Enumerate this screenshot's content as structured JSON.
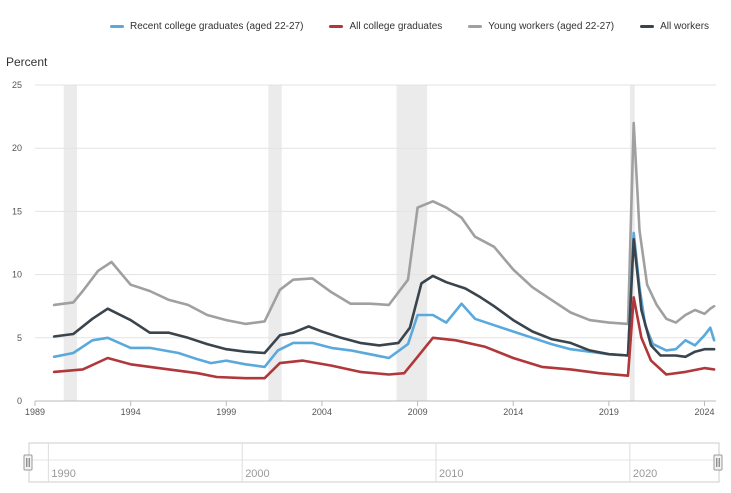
{
  "chart_data": {
    "type": "line",
    "ylabel": "Percent",
    "ylim": [
      0,
      25
    ],
    "y_ticks": [
      "0",
      "5",
      "10",
      "15",
      "20",
      "25"
    ],
    "x_ticks": [
      "1989",
      "1994",
      "1999",
      "2004",
      "2009",
      "2014",
      "2019",
      "2024"
    ],
    "xlim": [
      1989.0,
      2024.6
    ],
    "grid": "horizontal",
    "legend_position": "top",
    "recessions": [
      [
        1990.5,
        1991.2
      ],
      [
        2001.2,
        2001.9
      ],
      [
        2007.9,
        2009.5
      ],
      [
        2020.1,
        2020.35
      ]
    ],
    "series": [
      {
        "name": "Recent college graduates (aged 22-27)",
        "color": "#5aa9dd",
        "x": [
          1990.0,
          1991.0,
          1992.0,
          1992.8,
          1994.0,
          1995.0,
          1996.5,
          1997.5,
          1998.2,
          1999.0,
          2000.0,
          2001.0,
          2001.7,
          2002.5,
          2003.5,
          2004.5,
          2005.5,
          2006.5,
          2007.5,
          2008.5,
          2009.0,
          2009.8,
          2010.5,
          2011.3,
          2012.0,
          2013.0,
          2014.0,
          2015.0,
          2016.0,
          2017.0,
          2018.0,
          2019.0,
          2020.0,
          2020.3,
          2020.6,
          2020.9,
          2021.3,
          2022.0,
          2022.5,
          2023.0,
          2023.5,
          2024.0,
          2024.3,
          2024.5
        ],
        "values": [
          3.5,
          3.8,
          4.8,
          5.0,
          4.2,
          4.2,
          3.8,
          3.3,
          3.0,
          3.2,
          2.9,
          2.7,
          4.0,
          4.6,
          4.6,
          4.2,
          4.0,
          3.7,
          3.4,
          4.5,
          6.8,
          6.8,
          6.2,
          7.7,
          6.5,
          6.0,
          5.5,
          5.0,
          4.5,
          4.1,
          3.9,
          3.7,
          3.6,
          13.3,
          9.0,
          6.0,
          4.5,
          4.0,
          4.1,
          4.8,
          4.4,
          5.2,
          5.8,
          4.8
        ]
      },
      {
        "name": "All college graduates",
        "color": "#b0373a",
        "x": [
          1990.0,
          1991.5,
          1992.8,
          1994.0,
          1996.0,
          1997.5,
          1998.5,
          2000.0,
          2001.0,
          2001.8,
          2003.0,
          2004.5,
          2006.0,
          2007.5,
          2008.3,
          2009.0,
          2009.8,
          2011.0,
          2012.5,
          2014.0,
          2015.5,
          2017.0,
          2018.5,
          2020.0,
          2020.3,
          2020.7,
          2021.2,
          2022.0,
          2023.0,
          2024.0,
          2024.5
        ],
        "values": [
          2.3,
          2.5,
          3.4,
          2.9,
          2.5,
          2.2,
          1.9,
          1.8,
          1.8,
          3.0,
          3.2,
          2.8,
          2.3,
          2.1,
          2.2,
          3.5,
          5.0,
          4.8,
          4.3,
          3.4,
          2.7,
          2.5,
          2.2,
          2.0,
          8.2,
          5.0,
          3.2,
          2.1,
          2.3,
          2.6,
          2.5
        ]
      },
      {
        "name": "Young workers (aged 22-27)",
        "color": "#a0a0a0",
        "x": [
          1990.0,
          1991.0,
          1991.5,
          1992.3,
          1993.0,
          1994.0,
          1995.0,
          1996.0,
          1997.0,
          1998.0,
          1999.0,
          2000.0,
          2001.0,
          2001.8,
          2002.5,
          2003.5,
          2004.5,
          2005.5,
          2006.5,
          2007.5,
          2008.5,
          2009.0,
          2009.8,
          2010.5,
          2011.3,
          2012.0,
          2013.0,
          2014.0,
          2015.0,
          2016.0,
          2017.0,
          2018.0,
          2019.0,
          2020.0,
          2020.3,
          2020.6,
          2021.0,
          2021.5,
          2022.0,
          2022.5,
          2023.0,
          2023.5,
          2024.0,
          2024.3,
          2024.5
        ],
        "values": [
          7.6,
          7.8,
          8.7,
          10.3,
          11.0,
          9.2,
          8.7,
          8.0,
          7.6,
          6.8,
          6.4,
          6.1,
          6.3,
          8.8,
          9.6,
          9.7,
          8.6,
          7.7,
          7.7,
          7.6,
          9.6,
          15.3,
          15.8,
          15.3,
          14.5,
          13.0,
          12.2,
          10.4,
          9.0,
          8.0,
          7.0,
          6.4,
          6.2,
          6.1,
          22.0,
          13.5,
          9.2,
          7.6,
          6.5,
          6.2,
          6.8,
          7.2,
          6.9,
          7.3,
          7.5
        ]
      },
      {
        "name": "All workers",
        "color": "#3a444d",
        "x": [
          1990.0,
          1991.0,
          1992.0,
          1992.8,
          1994.0,
          1995.0,
          1996.0,
          1997.0,
          1998.0,
          1999.0,
          2000.0,
          2001.0,
          2001.8,
          2002.5,
          2003.3,
          2004.0,
          2005.0,
          2006.0,
          2007.0,
          2008.0,
          2008.6,
          2009.2,
          2009.8,
          2010.5,
          2011.5,
          2012.3,
          2013.0,
          2014.0,
          2015.0,
          2016.0,
          2017.0,
          2018.0,
          2019.0,
          2020.0,
          2020.3,
          2020.7,
          2021.2,
          2021.7,
          2022.5,
          2023.0,
          2023.5,
          2024.0,
          2024.5
        ],
        "values": [
          5.1,
          5.3,
          6.5,
          7.3,
          6.4,
          5.4,
          5.4,
          5.0,
          4.5,
          4.1,
          3.9,
          3.8,
          5.2,
          5.4,
          5.9,
          5.5,
          5.0,
          4.6,
          4.4,
          4.6,
          5.8,
          9.3,
          9.9,
          9.4,
          8.9,
          8.2,
          7.5,
          6.4,
          5.5,
          4.9,
          4.6,
          4.0,
          3.7,
          3.6,
          12.8,
          7.2,
          4.4,
          3.6,
          3.6,
          3.5,
          3.9,
          4.1,
          4.1
        ]
      }
    ]
  },
  "navigator": {
    "labels": [
      "1990",
      "2000",
      "2010",
      "2020"
    ]
  }
}
